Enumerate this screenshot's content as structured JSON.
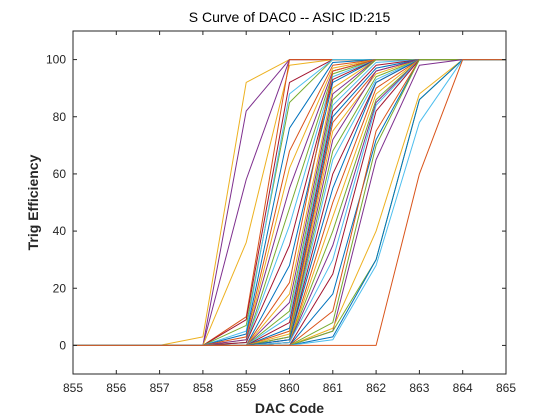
{
  "chart_data": {
    "type": "line",
    "title": "S Curve of DAC0 -- ASIC ID:215",
    "xlabel": "DAC Code",
    "ylabel": "Trig Efficiency",
    "xlim": [
      855,
      865
    ],
    "ylim": [
      -10,
      110
    ],
    "xticks": [
      855,
      856,
      857,
      858,
      859,
      860,
      861,
      862,
      863,
      864,
      865
    ],
    "yticks": [
      0,
      20,
      40,
      60,
      80,
      100
    ],
    "grid": false,
    "legend": "none",
    "x": [
      855,
      856,
      857,
      858,
      859,
      860,
      861,
      862,
      863,
      864,
      865
    ],
    "series": [
      {
        "color": "#EDB120",
        "values": [
          0,
          0,
          0,
          3,
          92,
          100,
          100,
          100,
          100,
          100,
          100
        ]
      },
      {
        "color": "#7E2F8E",
        "values": [
          0,
          0,
          0,
          0,
          82,
          100,
          100,
          100,
          100,
          100,
          100
        ]
      },
      {
        "color": "#7E2F8E",
        "values": [
          0,
          0,
          0,
          0,
          58,
          100,
          100,
          100,
          100,
          100,
          100
        ]
      },
      {
        "color": "#EDB120",
        "values": [
          0,
          0,
          0,
          0,
          36,
          98,
          100,
          100,
          100,
          100,
          100
        ]
      },
      {
        "color": "#D95319",
        "values": [
          0,
          0,
          0,
          0,
          10,
          100,
          100,
          100,
          100,
          100,
          100
        ]
      },
      {
        "color": "#A2142F",
        "values": [
          0,
          0,
          0,
          0,
          9,
          92,
          100,
          100,
          100,
          100,
          100
        ]
      },
      {
        "color": "#77AC30",
        "values": [
          0,
          0,
          0,
          0,
          7,
          85,
          100,
          100,
          100,
          100,
          100
        ]
      },
      {
        "color": "#4DBEEE",
        "values": [
          0,
          0,
          0,
          0,
          5,
          88,
          100,
          100,
          100,
          100,
          100
        ]
      },
      {
        "color": "#0072BD",
        "values": [
          0,
          0,
          0,
          0,
          4,
          76,
          99,
          100,
          100,
          100,
          100
        ]
      },
      {
        "color": "#D95319",
        "values": [
          0,
          0,
          0,
          0,
          3,
          68,
          98,
          100,
          100,
          100,
          100
        ]
      },
      {
        "color": "#EDB120",
        "values": [
          0,
          0,
          0,
          0,
          2,
          62,
          97,
          100,
          100,
          100,
          100
        ]
      },
      {
        "color": "#7E2F8E",
        "values": [
          0,
          0,
          0,
          0,
          2,
          55,
          96,
          100,
          100,
          100,
          100
        ]
      },
      {
        "color": "#77AC30",
        "values": [
          0,
          0,
          0,
          0,
          1,
          48,
          95,
          100,
          100,
          100,
          100
        ]
      },
      {
        "color": "#4DBEEE",
        "values": [
          0,
          0,
          0,
          0,
          1,
          42,
          94,
          100,
          100,
          100,
          100
        ]
      },
      {
        "color": "#A2142F",
        "values": [
          0,
          0,
          0,
          0,
          1,
          35,
          93,
          100,
          100,
          100,
          100
        ]
      },
      {
        "color": "#0072BD",
        "values": [
          0,
          0,
          0,
          0,
          0,
          28,
          92,
          100,
          100,
          100,
          100
        ]
      },
      {
        "color": "#D95319",
        "values": [
          0,
          0,
          0,
          0,
          0,
          22,
          96,
          100,
          100,
          100,
          100
        ]
      },
      {
        "color": "#EDB120",
        "values": [
          0,
          0,
          0,
          0,
          0,
          18,
          90,
          100,
          100,
          100,
          100
        ]
      },
      {
        "color": "#7E2F8E",
        "values": [
          0,
          0,
          0,
          0,
          0,
          15,
          88,
          100,
          100,
          100,
          100
        ]
      },
      {
        "color": "#77AC30",
        "values": [
          0,
          0,
          0,
          0,
          0,
          12,
          86,
          100,
          100,
          100,
          100
        ]
      },
      {
        "color": "#4DBEEE",
        "values": [
          0,
          0,
          0,
          0,
          0,
          10,
          84,
          99,
          100,
          100,
          100
        ]
      },
      {
        "color": "#A2142F",
        "values": [
          0,
          0,
          0,
          0,
          0,
          8,
          82,
          98,
          100,
          100,
          100
        ]
      },
      {
        "color": "#0072BD",
        "values": [
          0,
          0,
          0,
          0,
          0,
          6,
          80,
          97,
          100,
          100,
          100
        ]
      },
      {
        "color": "#D95319",
        "values": [
          0,
          0,
          0,
          0,
          0,
          5,
          78,
          96,
          100,
          100,
          100
        ]
      },
      {
        "color": "#EDB120",
        "values": [
          0,
          0,
          0,
          0,
          0,
          4,
          75,
          95,
          100,
          100,
          100
        ]
      },
      {
        "color": "#7E2F8E",
        "values": [
          0,
          0,
          0,
          0,
          0,
          3,
          72,
          96,
          100,
          100,
          100
        ]
      },
      {
        "color": "#77AC30",
        "values": [
          0,
          0,
          0,
          0,
          0,
          3,
          68,
          94,
          100,
          100,
          100
        ]
      },
      {
        "color": "#4DBEEE",
        "values": [
          0,
          0,
          0,
          0,
          0,
          2,
          65,
          93,
          100,
          100,
          100
        ]
      },
      {
        "color": "#A2142F",
        "values": [
          0,
          0,
          0,
          0,
          0,
          2,
          60,
          92,
          100,
          100,
          100
        ]
      },
      {
        "color": "#0072BD",
        "values": [
          0,
          0,
          0,
          0,
          0,
          2,
          55,
          92,
          100,
          100,
          100
        ]
      },
      {
        "color": "#D95319",
        "values": [
          0,
          0,
          0,
          0,
          0,
          1,
          50,
          90,
          100,
          100,
          100
        ]
      },
      {
        "color": "#EDB120",
        "values": [
          0,
          0,
          0,
          0,
          0,
          1,
          45,
          88,
          100,
          100,
          100
        ]
      },
      {
        "color": "#77AC30",
        "values": [
          0,
          0,
          0,
          0,
          0,
          1,
          40,
          86,
          100,
          100,
          100
        ]
      },
      {
        "color": "#7E2F8E",
        "values": [
          0,
          0,
          0,
          0,
          0,
          1,
          35,
          85,
          100,
          100,
          100
        ]
      },
      {
        "color": "#4DBEEE",
        "values": [
          0,
          0,
          0,
          0,
          0,
          1,
          30,
          84,
          100,
          100,
          100
        ]
      },
      {
        "color": "#A2142F",
        "values": [
          0,
          0,
          0,
          0,
          0,
          0,
          25,
          82,
          100,
          100,
          100
        ]
      },
      {
        "color": "#0072BD",
        "values": [
          0,
          0,
          0,
          0,
          0,
          0,
          18,
          72,
          100,
          100,
          100
        ]
      },
      {
        "color": "#D95319",
        "values": [
          0,
          0,
          0,
          0,
          0,
          0,
          12,
          75,
          100,
          100,
          100
        ]
      },
      {
        "color": "#77AC30",
        "values": [
          0,
          0,
          0,
          0,
          0,
          0,
          8,
          70,
          100,
          100,
          100
        ]
      },
      {
        "color": "#7E2F8E",
        "values": [
          0,
          0,
          0,
          0,
          0,
          0,
          5,
          65,
          98,
          100,
          100
        ]
      },
      {
        "color": "#EDB120",
        "values": [
          0,
          0,
          0,
          0,
          0,
          0,
          6,
          40,
          88,
          100,
          100
        ]
      },
      {
        "color": "#77AC30",
        "values": [
          0,
          0,
          0,
          0,
          0,
          0,
          5,
          30,
          86,
          100,
          100
        ]
      },
      {
        "color": "#0072BD",
        "values": [
          0,
          0,
          0,
          0,
          0,
          0,
          3,
          30,
          86,
          100,
          100
        ]
      },
      {
        "color": "#4DBEEE",
        "values": [
          0,
          0,
          0,
          0,
          0,
          0,
          2,
          28,
          78,
          100,
          100
        ]
      },
      {
        "color": "#D95319",
        "values": [
          0,
          0,
          0,
          0,
          0,
          0,
          0,
          0,
          60,
          100,
          100
        ]
      }
    ]
  }
}
